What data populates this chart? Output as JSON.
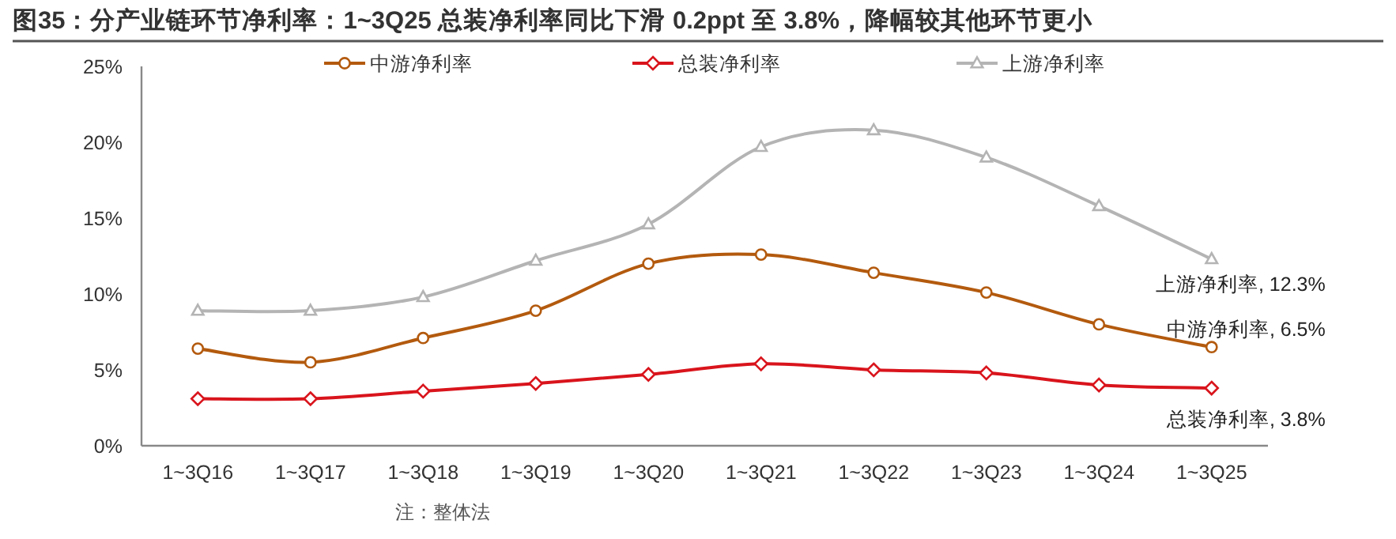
{
  "chart_data": {
    "type": "line",
    "title": "图35：分产业链环节净利率：1~3Q25 总装净利率同比下滑 0.2ppt 至 3.8%，降幅较其他环节更小",
    "categories": [
      "1~3Q16",
      "1~3Q17",
      "1~3Q18",
      "1~3Q19",
      "1~3Q20",
      "1~3Q21",
      "1~3Q22",
      "1~3Q23",
      "1~3Q24",
      "1~3Q25"
    ],
    "series": [
      {
        "name": "中游净利率",
        "color": "#b35a0e",
        "marker": "circle",
        "values": [
          6.4,
          5.5,
          7.1,
          8.9,
          12.0,
          12.6,
          11.4,
          10.1,
          8.0,
          6.5
        ]
      },
      {
        "name": "总装净利率",
        "color": "#d9141c",
        "marker": "diamond",
        "values": [
          3.1,
          3.1,
          3.6,
          4.1,
          4.7,
          5.4,
          5.0,
          4.8,
          4.0,
          3.8
        ]
      },
      {
        "name": "上游净利率",
        "color": "#b4b4b4",
        "marker": "triangle",
        "values": [
          8.9,
          8.9,
          9.8,
          12.2,
          14.6,
          19.7,
          20.8,
          19.0,
          15.8,
          12.3
        ]
      }
    ],
    "ylim": [
      0,
      25
    ],
    "yticks": [
      {
        "value": 0,
        "label": "0%"
      },
      {
        "value": 5,
        "label": "5%"
      },
      {
        "value": 10,
        "label": "10%"
      },
      {
        "value": 15,
        "label": "15%"
      },
      {
        "value": 20,
        "label": "20%"
      },
      {
        "value": 25,
        "label": "25%"
      }
    ],
    "grid": false,
    "legend": "top",
    "line_style": "solid",
    "annotations": [
      {
        "text": "上游净利率, 12.3%",
        "x": "1~3Q25",
        "y": 12.3
      },
      {
        "text": "中游净利率, 6.5%",
        "x": "1~3Q25",
        "y": 6.5
      },
      {
        "text": "总装净利率, 3.8%",
        "x": "1~3Q25",
        "y": 3.8
      },
      "注：整体法"
    ]
  }
}
